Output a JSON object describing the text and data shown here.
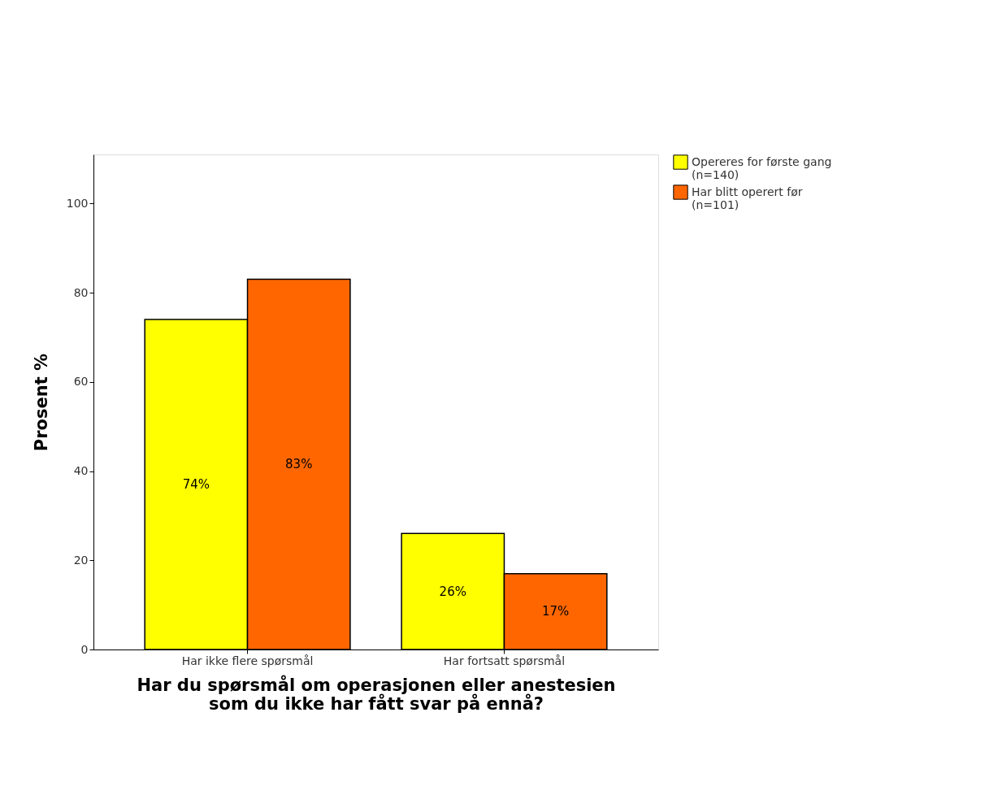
{
  "chart_data": {
    "type": "bar",
    "xlabel": "Har du spørsmål om operasjonen eller anestesien\nsom du ikke har fått svar på ennå?",
    "ylabel": "Prosent %",
    "categories": [
      "Har ikke flere spørsmål",
      "Har fortsatt spørsmål"
    ],
    "series": [
      {
        "name": "Opereres for første gang\n(n=140)",
        "color": "#ffff00",
        "values": [
          74,
          26
        ],
        "value_labels": [
          "74%",
          "26%"
        ]
      },
      {
        "name": "Har blitt operert før\n(n=101)",
        "color": "#ff6600",
        "values": [
          83,
          17
        ],
        "value_labels": [
          "83%",
          "17%"
        ]
      }
    ],
    "ylim": [
      0,
      111
    ],
    "yticks": [
      0,
      20,
      40,
      60,
      80,
      100
    ],
    "grid": false,
    "legend": "top right"
  }
}
